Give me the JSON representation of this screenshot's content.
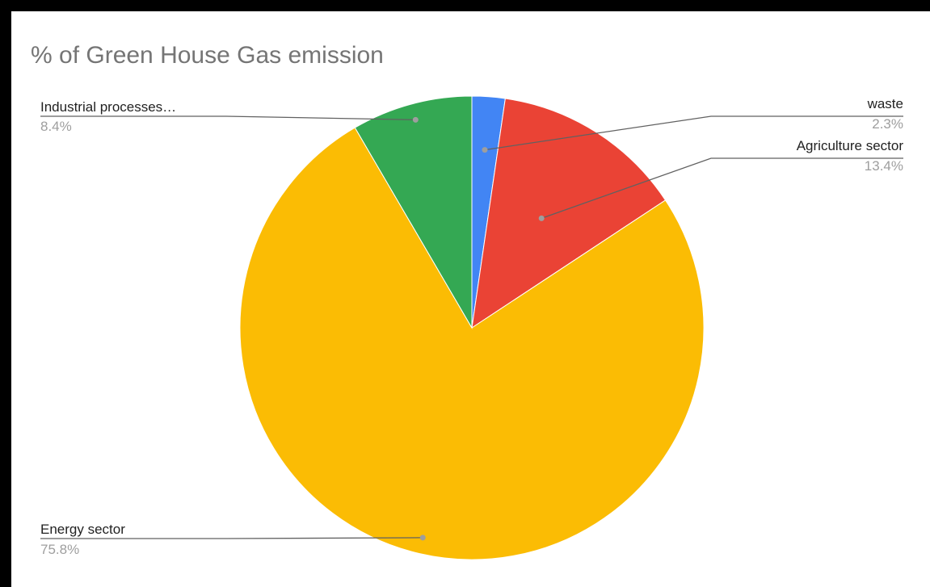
{
  "chart_data": {
    "type": "pie",
    "title": "% of Green House Gas emission",
    "slices": [
      {
        "name": "waste",
        "label": "waste",
        "value": 2.3,
        "percent_label": "2.3%",
        "color": "#4285f4"
      },
      {
        "name": "Agriculture sector",
        "label": "Agriculture sector",
        "value": 13.4,
        "percent_label": "13.4%",
        "color": "#ea4335"
      },
      {
        "name": "Energy sector",
        "label": "Energy sector",
        "value": 75.8,
        "percent_label": "75.8%",
        "color": "#fbbc04"
      },
      {
        "name": "Industrial processes",
        "label": "Industrial processes…",
        "value": 8.4,
        "percent_label": "8.4%",
        "color": "#34a853"
      }
    ],
    "legend": "labels"
  }
}
